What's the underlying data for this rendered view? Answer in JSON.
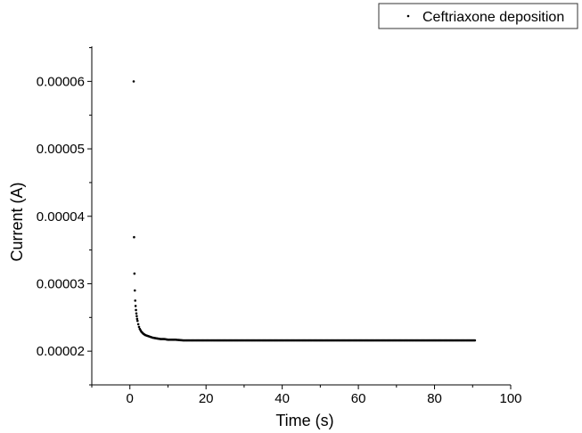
{
  "chart_data": {
    "type": "scatter",
    "xlabel": "Time (s)",
    "ylabel": "Current (A)",
    "xlim": [
      -10,
      100
    ],
    "ylim": [
      1.5e-05,
      6.52e-05
    ],
    "x_ticks": [
      0,
      20,
      40,
      60,
      80,
      100
    ],
    "x_tick_labels": [
      "0",
      "20",
      "40",
      "60",
      "80",
      "100"
    ],
    "y_ticks": [
      2e-05,
      3e-05,
      4e-05,
      5e-05,
      6e-05
    ],
    "y_tick_labels": [
      "0.00002",
      "0.00003",
      "0.00004",
      "0.00005",
      "0.00006"
    ],
    "grid": false,
    "legend_position": "top-right",
    "series": [
      {
        "name": "Ceftriaxone deposition",
        "color": "#000000",
        "marker": "dot",
        "x": [
          1.0,
          1.1,
          1.2,
          1.3,
          1.4,
          1.5,
          1.6,
          1.7,
          1.8,
          1.9,
          2.0,
          2.2,
          2.4,
          2.6,
          2.8,
          3.0,
          3.5,
          4.0,
          4.5,
          5.0,
          6.0,
          7.0,
          8.0,
          9.0,
          10.0,
          12.0,
          14.0,
          16.0,
          18.0,
          20.0,
          22.0,
          25.0,
          30.0,
          35.0,
          40.0,
          45.0,
          50.0,
          55.0,
          60.0,
          65.0,
          70.0,
          75.0,
          80.0,
          85.0,
          90.0,
          90.6
        ],
        "y": [
          6e-05,
          3.69e-05,
          3.15e-05,
          2.9e-05,
          2.75e-05,
          2.67e-05,
          2.61e-05,
          2.56e-05,
          2.52e-05,
          2.48e-05,
          2.45e-05,
          2.4e-05,
          2.36e-05,
          2.33e-05,
          2.31e-05,
          2.29e-05,
          2.26e-05,
          2.24e-05,
          2.23e-05,
          2.22e-05,
          2.2e-05,
          2.19e-05,
          2.18e-05,
          2.18e-05,
          2.17e-05,
          2.17e-05,
          2.16e-05,
          2.16e-05,
          2.16e-05,
          2.16e-05,
          2.16e-05,
          2.16e-05,
          2.16e-05,
          2.16e-05,
          2.16e-05,
          2.16e-05,
          2.16e-05,
          2.16e-05,
          2.16e-05,
          2.16e-05,
          2.16e-05,
          2.16e-05,
          2.16e-05,
          2.16e-05,
          2.16e-05,
          2.16e-05
        ]
      }
    ]
  }
}
